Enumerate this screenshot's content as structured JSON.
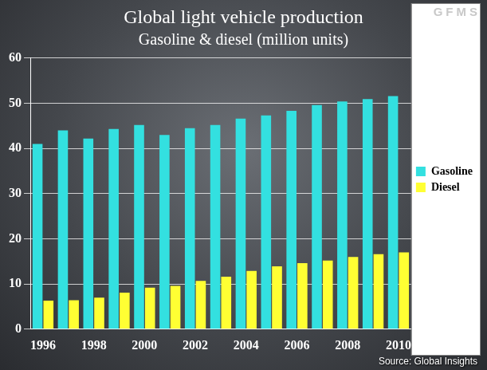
{
  "chart_data": {
    "type": "bar",
    "title": "Global light vehicle production",
    "subtitle": "Gasoline & diesel (million units)",
    "logo": "GFMS",
    "source": "Source: Global Insights",
    "categories": [
      "1996",
      null,
      "1998",
      null,
      "2000",
      null,
      "2002",
      null,
      "2004",
      null,
      "2006",
      null,
      "2008",
      null,
      "2010"
    ],
    "series": [
      {
        "name": "Gasoline",
        "color": "#33e0e0",
        "values": [
          41,
          44,
          42.2,
          44.3,
          45.2,
          43,
          44.5,
          45.2,
          46.6,
          47.3,
          48.3,
          49.6,
          50.4,
          50.9,
          51.6
        ]
      },
      {
        "name": "Diesel",
        "color": "#ffff33",
        "values": [
          6.3,
          6.4,
          7,
          8.1,
          9.2,
          9.6,
          10.7,
          11.6,
          12.9,
          13.9,
          14.6,
          15.2,
          16,
          16.6,
          17
        ]
      }
    ],
    "ylim": [
      0,
      60
    ],
    "yticks": [
      0,
      10,
      20,
      30,
      40,
      50,
      60
    ],
    "grid": true,
    "legend": "right"
  }
}
